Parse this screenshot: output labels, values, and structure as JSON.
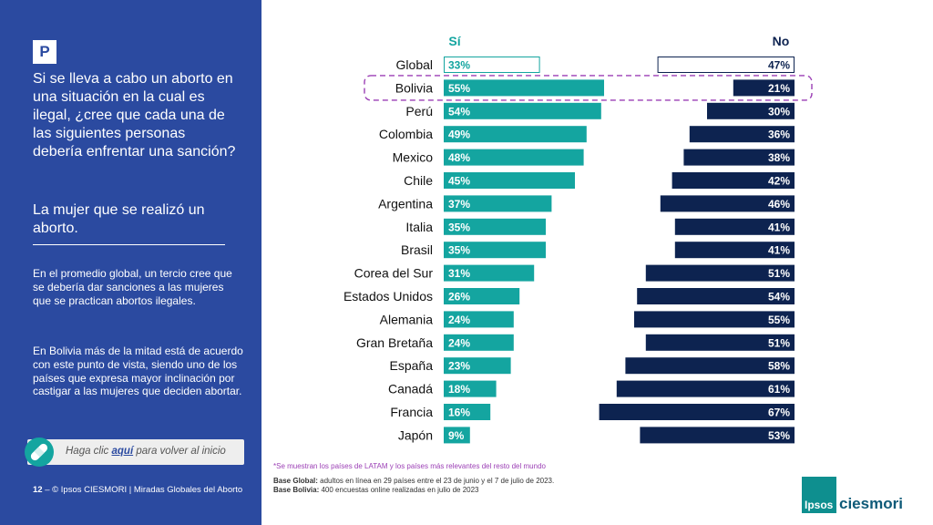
{
  "sidebar": {
    "badge": "P",
    "question": "Si se lleva a cabo un aborto en una situación en la cual es ilegal, ¿cree que cada una de las siguientes personas debería enfrentar una sanción?",
    "subquestion": "La mujer que se realizó un aborto.",
    "insight1": "En el promedio global, un tercio cree que se debería dar sanciones a las mujeres que se practican abortos ilegales.",
    "insight2": "En Bolivia más de la mitad está de acuerdo con este punto de vista, siendo uno de los países que expresa mayor inclinación por castigar a las mujeres que deciden abortar.",
    "back_prefix": "Haga clic ",
    "back_link": "aquí",
    "back_suffix": " para volver al inicio",
    "page_number": "12",
    "footer_text": " –  © Ipsos CIESMORI | Miradas Globales del Aborto",
    "back_icon": "band-aid-icon"
  },
  "chart_data": {
    "type": "bar",
    "categories": [
      "Global",
      "Bolivia",
      "Perú",
      "Colombia",
      "Mexico",
      "Chile",
      "Argentina",
      "Italia",
      "Brasil",
      "Corea del Sur",
      "Estados Unidos",
      "Alemania",
      "Gran Bretaña",
      "España",
      "Canadá",
      "Francia",
      "Japón"
    ],
    "series": [
      {
        "name": "Sí",
        "values": [
          33,
          55,
          54,
          49,
          48,
          45,
          37,
          35,
          35,
          31,
          26,
          24,
          24,
          23,
          18,
          16,
          9
        ],
        "color": "#14a5a0"
      },
      {
        "name": "No",
        "values": [
          47,
          21,
          30,
          36,
          38,
          42,
          46,
          41,
          41,
          51,
          54,
          55,
          51,
          58,
          61,
          67,
          53
        ],
        "color": "#0d2350"
      }
    ],
    "value_suffix": "%",
    "highlight": "Bolivia",
    "highlight_color": "#9b3fb5",
    "global_style": "outlined",
    "legend_position": "top",
    "grid": false
  },
  "notes": {
    "footnote": "*Se muestran los países de LATAM y los países más relevantes del resto del mundo",
    "base_global_label": "Base Global:",
    "base_global_text": " adultos en línea en 29 países entre el 23 de junio y el 7 de julio de 2023.",
    "base_bolivia_label": "Base Bolivia:",
    "base_bolivia_text": " 400 encuestas online realizadas en julio de 2023"
  },
  "logo": {
    "box_text": "Ipsos",
    "word": "ciesmori",
    "brand_color": "#0e8f8f"
  }
}
